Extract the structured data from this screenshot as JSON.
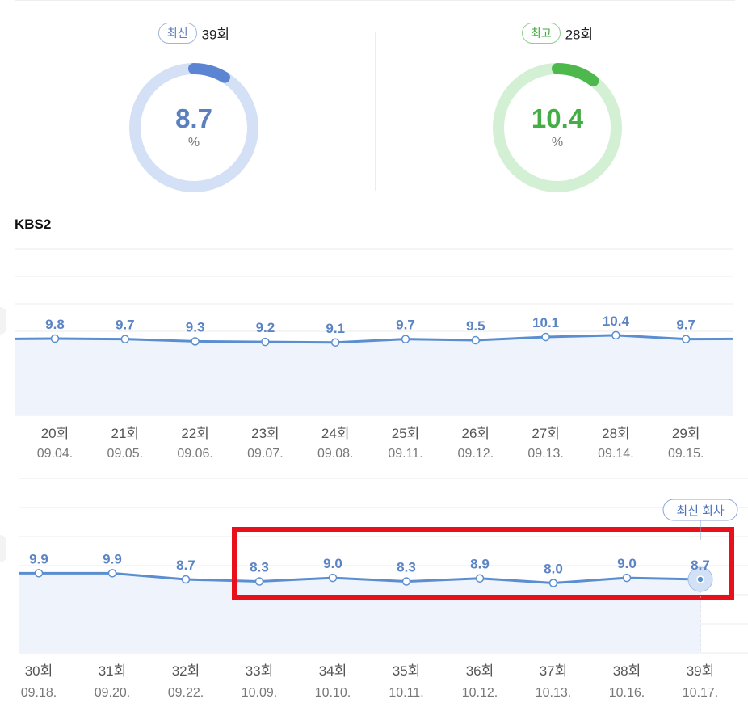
{
  "summary": {
    "latest": {
      "badge": "최신",
      "episode": "39회",
      "value": "8.7",
      "unit": "%",
      "fraction": 0.087,
      "color": "#5b84d2",
      "track": "#d3e0f6"
    },
    "highest": {
      "badge": "최고",
      "episode": "28회",
      "value": "10.4",
      "unit": "%",
      "fraction": 0.104,
      "color": "#4db94d",
      "track": "#d4f0d4"
    }
  },
  "channel": "KBS2",
  "latest_tooltip": "최신 회차",
  "chart_data": [
    {
      "type": "line",
      "categories": [
        "20회",
        "21회",
        "22회",
        "23회",
        "24회",
        "25회",
        "26회",
        "27회",
        "28회",
        "29회"
      ],
      "dates": [
        "09.04.",
        "09.05.",
        "09.06.",
        "09.07.",
        "09.08.",
        "09.11.",
        "09.12.",
        "09.13.",
        "09.14.",
        "09.15."
      ],
      "values": [
        9.8,
        9.7,
        9.3,
        9.2,
        9.1,
        9.7,
        9.5,
        10.1,
        10.4,
        9.7
      ],
      "labels": [
        "9.8",
        "9.7",
        "9.3",
        "9.2",
        "9.1",
        "9.7",
        "9.5",
        "10.1",
        "10.4",
        "9.7"
      ],
      "line_color": "#5b8ed0",
      "area_color": "#eef3fc"
    },
    {
      "type": "line",
      "categories": [
        "30회",
        "31회",
        "32회",
        "33회",
        "34회",
        "35회",
        "36회",
        "37회",
        "38회",
        "39회"
      ],
      "dates": [
        "09.18.",
        "09.20.",
        "09.22.",
        "10.09.",
        "10.10.",
        "10.11.",
        "10.12.",
        "10.13.",
        "10.16.",
        "10.17."
      ],
      "values": [
        9.9,
        9.9,
        8.7,
        8.3,
        9.0,
        8.3,
        8.9,
        8.0,
        9.0,
        8.7
      ],
      "labels": [
        "9.9",
        "9.9",
        "8.7",
        "8.3",
        "9.0",
        "8.3",
        "8.9",
        "8.0",
        "9.0",
        "8.7"
      ],
      "line_color": "#5b8ed0",
      "area_color": "#eef3fc",
      "highlight_color": "#e8101a"
    }
  ]
}
